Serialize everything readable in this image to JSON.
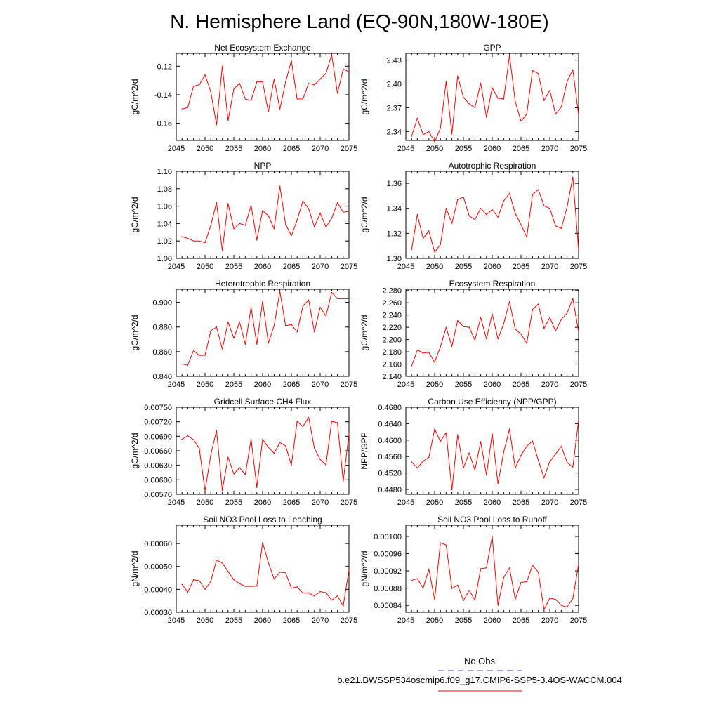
{
  "page": {
    "title": "N. Hemisphere Land (EQ-90N,180W-180E)",
    "legend": {
      "obs_label": "No Obs",
      "obs_color": "#4444cc",
      "case_label": "b.e21.BWSSP534oscmip6.f09_g17.CMIP6-SSP5-3.4OS-WACCM.004",
      "case_color": "#ff0000"
    }
  },
  "chart_data": [
    {
      "type": "line",
      "title": "Net Ecosystem Exchange",
      "ylabel": "gC/m^2/d",
      "xlim": [
        2045,
        2075
      ],
      "ylim": [
        -0.172,
        -0.111
      ],
      "xticks": [
        "2045",
        "2050",
        "2055",
        "2060",
        "2065",
        "2070",
        "2075"
      ],
      "yticks": [
        {
          "value": -0.12,
          "label": "-0.12"
        },
        {
          "value": -0.14,
          "label": "-0.14"
        },
        {
          "value": -0.16,
          "label": "-0.16"
        }
      ],
      "color": "#ff0000",
      "x": [
        2046,
        2047,
        2048,
        2049,
        2050,
        2051,
        2052,
        2053,
        2054,
        2055,
        2056,
        2057,
        2058,
        2059,
        2060,
        2061,
        2062,
        2063,
        2064,
        2065,
        2066,
        2067,
        2068,
        2069,
        2070,
        2071,
        2072,
        2073,
        2074,
        2075
      ],
      "y": [
        -0.15,
        -0.149,
        -0.134,
        -0.133,
        -0.126,
        -0.138,
        -0.161,
        -0.12,
        -0.158,
        -0.136,
        -0.132,
        -0.143,
        -0.144,
        -0.131,
        -0.131,
        -0.152,
        -0.129,
        -0.15,
        -0.131,
        -0.116,
        -0.143,
        -0.143,
        -0.132,
        -0.133,
        -0.129,
        -0.125,
        -0.112,
        -0.139,
        -0.122,
        -0.124
      ]
    },
    {
      "type": "line",
      "title": "GPP",
      "ylabel": "gC/m^2/d",
      "xlim": [
        2045,
        2075
      ],
      "ylim": [
        2.3288,
        2.4385
      ],
      "xticks": [
        "2045",
        "2050",
        "2055",
        "2060",
        "2065",
        "2070",
        "2075"
      ],
      "yticks": [
        {
          "value": 2.43,
          "label": "2.43"
        },
        {
          "value": 2.4,
          "label": "2.40"
        },
        {
          "value": 2.37,
          "label": "2.37"
        },
        {
          "value": 2.34,
          "label": "2.34"
        }
      ],
      "color": "#ff0000",
      "x": [
        2046,
        2047,
        2048,
        2049,
        2050,
        2051,
        2052,
        2053,
        2054,
        2055,
        2056,
        2057,
        2058,
        2059,
        2060,
        2061,
        2062,
        2063,
        2064,
        2065,
        2066,
        2067,
        2068,
        2069,
        2070,
        2071,
        2072,
        2073,
        2074,
        2075
      ],
      "y": [
        2.334,
        2.357,
        2.336,
        2.34,
        2.327,
        2.344,
        2.403,
        2.337,
        2.41,
        2.383,
        2.375,
        2.37,
        2.401,
        2.358,
        2.395,
        2.382,
        2.381,
        2.436,
        2.378,
        2.353,
        2.362,
        2.417,
        2.413,
        2.379,
        2.392,
        2.362,
        2.371,
        2.403,
        2.418,
        2.361
      ]
    },
    {
      "type": "line",
      "title": "NPP",
      "ylabel": "gC/m^2/d",
      "xlim": [
        2045,
        2075
      ],
      "ylim": [
        1.0,
        1.1
      ],
      "xticks": [
        "2045",
        "2050",
        "2055",
        "2060",
        "2065",
        "2070",
        "2075"
      ],
      "yticks": [
        {
          "value": 1.1,
          "label": "1.10"
        },
        {
          "value": 1.08,
          "label": "1.08"
        },
        {
          "value": 1.06,
          "label": "1.06"
        },
        {
          "value": 1.04,
          "label": "1.04"
        },
        {
          "value": 1.02,
          "label": "1.02"
        },
        {
          "value": 1.0,
          "label": "1.00"
        }
      ],
      "color": "#ff0000",
      "x": [
        2046,
        2047,
        2048,
        2049,
        2050,
        2051,
        2052,
        2053,
        2054,
        2055,
        2056,
        2057,
        2058,
        2059,
        2060,
        2061,
        2062,
        2063,
        2064,
        2065,
        2066,
        2067,
        2068,
        2069,
        2070,
        2071,
        2072,
        2073,
        2074,
        2075
      ],
      "y": [
        1.025,
        1.023,
        1.02,
        1.02,
        1.018,
        1.038,
        1.064,
        1.009,
        1.063,
        1.034,
        1.04,
        1.038,
        1.061,
        1.021,
        1.055,
        1.049,
        1.034,
        1.083,
        1.039,
        1.026,
        1.044,
        1.066,
        1.057,
        1.036,
        1.052,
        1.036,
        1.046,
        1.064,
        1.053,
        1.054
      ]
    },
    {
      "type": "line",
      "title": "Autotrophic Respiration",
      "ylabel": "gC/m^2/d",
      "xlim": [
        2045,
        2075
      ],
      "ylim": [
        1.3,
        1.3696
      ],
      "xticks": [
        "2045",
        "2050",
        "2055",
        "2060",
        "2065",
        "2070",
        "2075"
      ],
      "yticks": [
        {
          "value": 1.36,
          "label": "1.36"
        },
        {
          "value": 1.34,
          "label": "1.34"
        },
        {
          "value": 1.32,
          "label": "1.32"
        },
        {
          "value": 1.3,
          "label": "1.30"
        }
      ],
      "color": "#ff0000",
      "x": [
        2046,
        2047,
        2048,
        2049,
        2050,
        2051,
        2052,
        2053,
        2054,
        2055,
        2056,
        2057,
        2058,
        2059,
        2060,
        2061,
        2062,
        2063,
        2064,
        2065,
        2066,
        2067,
        2068,
        2069,
        2070,
        2071,
        2072,
        2073,
        2074,
        2075
      ],
      "y": [
        1.307,
        1.335,
        1.316,
        1.322,
        1.305,
        1.311,
        1.34,
        1.328,
        1.347,
        1.349,
        1.334,
        1.331,
        1.34,
        1.335,
        1.339,
        1.333,
        1.346,
        1.352,
        1.336,
        1.327,
        1.317,
        1.351,
        1.355,
        1.342,
        1.34,
        1.326,
        1.324,
        1.341,
        1.365,
        1.307
      ]
    },
    {
      "type": "line",
      "title": "Heterotrophic Respiration",
      "ylabel": "gC/m^2/d",
      "xlim": [
        2045,
        2075
      ],
      "ylim": [
        0.84,
        0.9106
      ],
      "xticks": [
        "2045",
        "2050",
        "2055",
        "2060",
        "2065",
        "2070",
        "2075"
      ],
      "yticks": [
        {
          "value": 0.9,
          "label": "0.900"
        },
        {
          "value": 0.88,
          "label": "0.880"
        },
        {
          "value": 0.86,
          "label": "0.860"
        },
        {
          "value": 0.84,
          "label": "0.840"
        }
      ],
      "color": "#ff0000",
      "x": [
        2046,
        2047,
        2048,
        2049,
        2050,
        2051,
        2052,
        2053,
        2054,
        2055,
        2056,
        2057,
        2058,
        2059,
        2060,
        2061,
        2062,
        2063,
        2064,
        2065,
        2066,
        2067,
        2068,
        2069,
        2070,
        2071,
        2072,
        2073,
        2074,
        2075
      ],
      "y": [
        0.85,
        0.849,
        0.861,
        0.857,
        0.857,
        0.877,
        0.88,
        0.862,
        0.884,
        0.871,
        0.884,
        0.866,
        0.896,
        0.866,
        0.901,
        0.867,
        0.881,
        0.909,
        0.881,
        0.882,
        0.876,
        0.897,
        0.902,
        0.876,
        0.896,
        0.889,
        0.908,
        0.903,
        0.903,
        0.903
      ]
    },
    {
      "type": "line",
      "title": "Ecosystem Respiration",
      "ylabel": "gC/m^2/d",
      "xlim": [
        2045,
        2075
      ],
      "ylim": [
        2.14,
        2.282
      ],
      "xticks": [
        "2045",
        "2050",
        "2055",
        "2060",
        "2065",
        "2070",
        "2075"
      ],
      "yticks": [
        {
          "value": 2.28,
          "label": "2.280"
        },
        {
          "value": 2.26,
          "label": "2.260"
        },
        {
          "value": 2.24,
          "label": "2.240"
        },
        {
          "value": 2.22,
          "label": "2.220"
        },
        {
          "value": 2.2,
          "label": "2.200"
        },
        {
          "value": 2.18,
          "label": "2.180"
        },
        {
          "value": 2.16,
          "label": "2.160"
        },
        {
          "value": 2.14,
          "label": "2.140"
        }
      ],
      "color": "#ff0000",
      "x": [
        2046,
        2047,
        2048,
        2049,
        2050,
        2051,
        2052,
        2053,
        2054,
        2055,
        2056,
        2057,
        2058,
        2059,
        2060,
        2061,
        2062,
        2063,
        2064,
        2065,
        2066,
        2067,
        2068,
        2069,
        2070,
        2071,
        2072,
        2073,
        2074,
        2075
      ],
      "y": [
        2.157,
        2.183,
        2.178,
        2.179,
        2.163,
        2.188,
        2.22,
        2.189,
        2.231,
        2.221,
        2.22,
        2.199,
        2.236,
        2.201,
        2.242,
        2.201,
        2.226,
        2.262,
        2.217,
        2.209,
        2.194,
        2.249,
        2.258,
        2.218,
        2.236,
        2.214,
        2.233,
        2.243,
        2.267,
        2.213
      ]
    },
    {
      "type": "line",
      "title": "Gridcell Surface CH4 Flux",
      "ylabel": "gC/m^2/d",
      "xlim": [
        2045,
        2075
      ],
      "ylim": [
        0.0057,
        0.0075
      ],
      "xticks": [
        "2045",
        "2050",
        "2055",
        "2060",
        "2065",
        "2070",
        "2075"
      ],
      "yticks": [
        {
          "value": 0.0075,
          "label": "0.00750"
        },
        {
          "value": 0.0072,
          "label": "0.00720"
        },
        {
          "value": 0.0069,
          "label": "0.00690"
        },
        {
          "value": 0.0066,
          "label": "0.00660"
        },
        {
          "value": 0.0063,
          "label": "0.00630"
        },
        {
          "value": 0.006,
          "label": "0.00600"
        },
        {
          "value": 0.0057,
          "label": "0.00570"
        }
      ],
      "color": "#ff0000",
      "x": [
        2046,
        2047,
        2048,
        2049,
        2050,
        2051,
        2052,
        2053,
        2054,
        2055,
        2056,
        2057,
        2058,
        2059,
        2060,
        2061,
        2062,
        2063,
        2064,
        2065,
        2066,
        2067,
        2068,
        2069,
        2070,
        2071,
        2072,
        2073,
        2074,
        2075
      ],
      "y": [
        0.00684,
        0.00691,
        0.00683,
        0.00665,
        0.00577,
        0.00652,
        0.00702,
        0.00578,
        0.00647,
        0.00612,
        0.00625,
        0.00611,
        0.00684,
        0.00584,
        0.00684,
        0.00667,
        0.00655,
        0.00677,
        0.0067,
        0.0063,
        0.00721,
        0.0071,
        0.00729,
        0.00665,
        0.00642,
        0.00631,
        0.00721,
        0.00718,
        0.00597,
        0.00695
      ]
    },
    {
      "type": "line",
      "title": "Carbon Use Efficiency (NPP/GPP)",
      "ylabel": "NPP/GPP",
      "xlim": [
        2045,
        2075
      ],
      "ylim": [
        0.4468,
        0.468
      ],
      "xticks": [
        "2045",
        "2050",
        "2055",
        "2060",
        "2065",
        "2070",
        "2075"
      ],
      "yticks": [
        {
          "value": 0.468,
          "label": "0.4680"
        },
        {
          "value": 0.464,
          "label": "0.4640"
        },
        {
          "value": 0.46,
          "label": "0.4600"
        },
        {
          "value": 0.456,
          "label": "0.4560"
        },
        {
          "value": 0.452,
          "label": "0.4520"
        },
        {
          "value": 0.448,
          "label": "0.4480"
        }
      ],
      "color": "#ff0000",
      "x": [
        2046,
        2047,
        2048,
        2049,
        2050,
        2051,
        2052,
        2053,
        2054,
        2055,
        2056,
        2057,
        2058,
        2059,
        2060,
        2061,
        2062,
        2063,
        2064,
        2065,
        2066,
        2067,
        2068,
        2069,
        2070,
        2071,
        2072,
        2073,
        2074,
        2075
      ],
      "y": [
        0.4547,
        0.4532,
        0.4549,
        0.4558,
        0.4627,
        0.4597,
        0.4618,
        0.4479,
        0.4613,
        0.4532,
        0.4569,
        0.4527,
        0.4596,
        0.4515,
        0.4616,
        0.4494,
        0.4571,
        0.4627,
        0.4532,
        0.4563,
        0.4585,
        0.4598,
        0.4551,
        0.4508,
        0.4548,
        0.4566,
        0.4585,
        0.4546,
        0.4534,
        0.4648
      ]
    },
    {
      "type": "line",
      "title": "Soil NO3 Pool Loss to Leaching",
      "ylabel": "gN/m^2/d",
      "xlim": [
        2045,
        2075
      ],
      "ylim": [
        0.0003,
        0.00068
      ],
      "xticks": [
        "2045",
        "2050",
        "2055",
        "2060",
        "2065",
        "2070",
        "2075"
      ],
      "yticks": [
        {
          "value": 0.0006,
          "label": "0.00060"
        },
        {
          "value": 0.0005,
          "label": "0.00050"
        },
        {
          "value": 0.0004,
          "label": "0.00040"
        },
        {
          "value": 0.0003,
          "label": "0.00030"
        }
      ],
      "color": "#ff0000",
      "x": [
        2046,
        2047,
        2048,
        2049,
        2050,
        2051,
        2052,
        2053,
        2054,
        2055,
        2056,
        2057,
        2058,
        2059,
        2060,
        2061,
        2062,
        2063,
        2064,
        2065,
        2066,
        2067,
        2068,
        2069,
        2070,
        2071,
        2072,
        2073,
        2074,
        2075
      ],
      "y": [
        0.000422,
        0.000388,
        0.000442,
        0.000438,
        0.0004,
        0.000435,
        0.000528,
        0.000515,
        0.000478,
        0.000442,
        0.000425,
        0.000413,
        0.000413,
        0.000414,
        0.000605,
        0.000517,
        0.000445,
        0.000475,
        0.000472,
        0.000405,
        0.000411,
        0.000384,
        0.000385,
        0.000371,
        0.00039,
        0.000386,
        0.000353,
        0.000372,
        0.000327,
        0.000485
      ]
    },
    {
      "type": "line",
      "title": "Soil NO3 Pool Loss to Runoff",
      "ylabel": "gN/m^2/d",
      "xlim": [
        2045,
        2075
      ],
      "ylim": [
        0.000824,
        0.001026
      ],
      "xticks": [
        "2045",
        "2050",
        "2055",
        "2060",
        "2065",
        "2070",
        "2075"
      ],
      "yticks": [
        {
          "value": 0.001,
          "label": "0.00100"
        },
        {
          "value": 0.00096,
          "label": "0.00096"
        },
        {
          "value": 0.00092,
          "label": "0.00092"
        },
        {
          "value": 0.00088,
          "label": "0.00088"
        },
        {
          "value": 0.00084,
          "label": "0.00084"
        }
      ],
      "color": "#ff0000",
      "x": [
        2046,
        2047,
        2048,
        2049,
        2050,
        2051,
        2052,
        2053,
        2054,
        2055,
        2056,
        2057,
        2058,
        2059,
        2060,
        2061,
        2062,
        2063,
        2064,
        2065,
        2066,
        2067,
        2068,
        2069,
        2070,
        2071,
        2072,
        2073,
        2074,
        2075
      ],
      "y": [
        0.000898,
        0.000902,
        0.00088,
        0.000924,
        0.000853,
        0.000985,
        0.00098,
        0.000879,
        0.000887,
        0.000851,
        0.000875,
        0.000852,
        0.000925,
        0.000927,
        0.001,
        0.00084,
        0.000905,
        0.000927,
        0.000854,
        0.000893,
        0.000895,
        0.000933,
        0.000917,
        0.00083,
        0.000857,
        0.000854,
        0.00084,
        0.000836,
        0.000856,
        0.000935
      ]
    }
  ]
}
